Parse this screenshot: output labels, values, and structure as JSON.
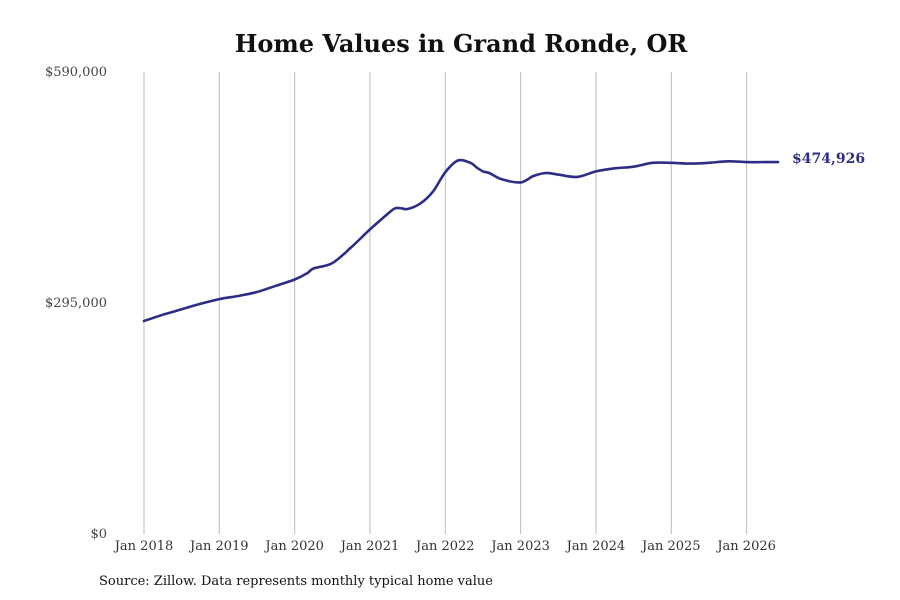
{
  "chart_data": {
    "type": "line",
    "title": "Home Values in Grand Ronde, OR",
    "xlabel": "",
    "ylabel": "",
    "ylim": [
      0,
      590000
    ],
    "y_ticks": [
      0,
      295000,
      590000
    ],
    "y_tick_labels": [
      "$0",
      "$295,000",
      "$590,000"
    ],
    "x_ticks": [
      "2018-01",
      "2019-01",
      "2020-01",
      "2021-01",
      "2022-01",
      "2023-01",
      "2024-01",
      "2025-01",
      "2026-01"
    ],
    "x_tick_labels": [
      "Jan 2018",
      "Jan 2019",
      "Jan 2020",
      "Jan 2021",
      "Jan 2022",
      "Jan 2023",
      "Jan 2024",
      "Jan 2025",
      "Jan 2026"
    ],
    "xlim": [
      "2018-01",
      "2026-06"
    ],
    "grid": "vertical",
    "legend": "none",
    "line_color": "#2e2d85",
    "series": [
      {
        "x": [
          "2018-01",
          "2018-04",
          "2018-07",
          "2018-10",
          "2019-01",
          "2019-04",
          "2019-07",
          "2019-10",
          "2020-01",
          "2020-03",
          "2020-04",
          "2020-07",
          "2020-10",
          "2021-01",
          "2021-04",
          "2021-05",
          "2021-06",
          "2021-07",
          "2021-09",
          "2021-11",
          "2022-01",
          "2022-03",
          "2022-05",
          "2022-06",
          "2022-07",
          "2022-08",
          "2022-10",
          "2023-01",
          "2023-03",
          "2023-05",
          "2023-07",
          "2023-10",
          "2024-01",
          "2024-04",
          "2024-07",
          "2024-10",
          "2025-01",
          "2025-04",
          "2025-07",
          "2025-10",
          "2026-01",
          "2026-04",
          "2026-06"
        ],
        "y": [
          272000,
          280000,
          287000,
          294000,
          300000,
          304000,
          309000,
          317000,
          325000,
          333000,
          339000,
          346000,
          366000,
          389000,
          410000,
          416000,
          416000,
          415000,
          422000,
          437000,
          462000,
          477000,
          474000,
          468000,
          463000,
          461000,
          453000,
          449000,
          457000,
          461000,
          459000,
          456000,
          463000,
          467000,
          469000,
          474000,
          474000,
          473000,
          474000,
          476000,
          475000,
          474926,
          474926
        ]
      }
    ],
    "end_value_label": "$474,926",
    "source": "Source: Zillow. Data represents monthly typical home value"
  }
}
